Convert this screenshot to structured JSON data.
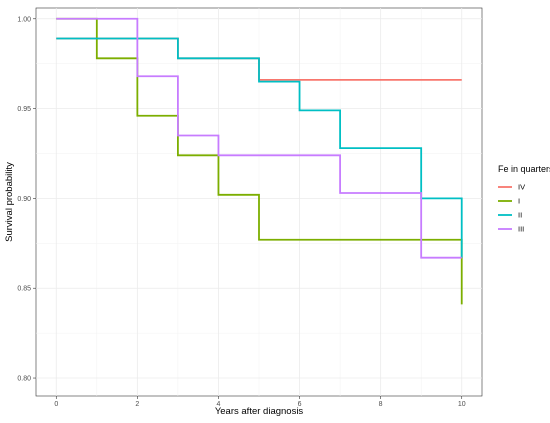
{
  "chart_data": {
    "type": "line",
    "step": true,
    "title": "",
    "xlabel": "Years after diagnosis",
    "ylabel": "Survival probability",
    "xlim": [
      -0.5,
      10.5
    ],
    "ylim": [
      0.79,
      1.006
    ],
    "x_ticks": [
      0,
      2,
      4,
      6,
      8,
      10
    ],
    "y_ticks": [
      0.8,
      0.85,
      0.9,
      0.95,
      1.0
    ],
    "y_tick_labels": [
      "0.80",
      "0.85",
      "0.90",
      "0.95",
      "1.00"
    ],
    "grid": true,
    "legend": {
      "title": "Fe in quarters",
      "placement": "right"
    },
    "series": [
      {
        "name": "IV",
        "color": "#F8766D",
        "x": [
          0,
          1,
          3,
          5,
          10
        ],
        "y": [
          0.989,
          0.989,
          0.978,
          0.966,
          0.966
        ]
      },
      {
        "name": "I",
        "color": "#7CAE00",
        "x": [
          0,
          1,
          2,
          3,
          4,
          5,
          10
        ],
        "y": [
          1.0,
          0.978,
          0.946,
          0.924,
          0.902,
          0.877,
          0.841
        ]
      },
      {
        "name": "II",
        "color": "#00BFC4",
        "x": [
          0,
          3,
          5,
          6,
          7,
          9,
          10
        ],
        "y": [
          0.989,
          0.978,
          0.965,
          0.949,
          0.928,
          0.9,
          0.867
        ]
      },
      {
        "name": "III",
        "color": "#C77CFF",
        "x": [
          0,
          2,
          3,
          4,
          7,
          9,
          10
        ],
        "y": [
          1.0,
          0.968,
          0.935,
          0.924,
          0.903,
          0.867,
          0.867
        ]
      }
    ]
  }
}
